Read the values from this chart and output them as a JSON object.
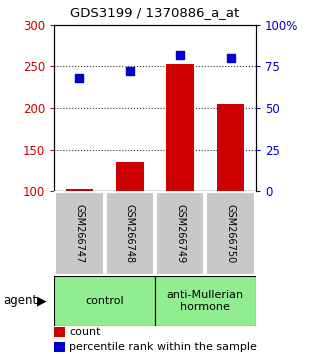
{
  "title": "GDS3199 / 1370886_a_at",
  "samples": [
    "GSM266747",
    "GSM266748",
    "GSM266749",
    "GSM266750"
  ],
  "count_values": [
    103,
    135,
    253,
    205
  ],
  "percentile_pct": [
    68,
    72,
    82,
    80
  ],
  "groups": [
    {
      "name": "control",
      "color": "#90EE90"
    },
    {
      "name": "anti-Mullerian\nhormone",
      "color": "#90EE90"
    }
  ],
  "bar_color": "#CC0000",
  "dot_color": "#0000CC",
  "left_ylim": [
    100,
    300
  ],
  "left_yticks": [
    100,
    150,
    200,
    250,
    300
  ],
  "right_ylim": [
    0,
    100
  ],
  "right_yticks": [
    0,
    25,
    50,
    75,
    100
  ],
  "right_yticklabels": [
    "0",
    "25",
    "50",
    "75",
    "100%"
  ],
  "left_tick_color": "#CC0000",
  "right_tick_color": "#0000CC",
  "bar_width": 0.55,
  "sample_box_color": "#C8C8C8",
  "legend_count_label": "count",
  "legend_pct_label": "percentile rank within the sample",
  "agent_label": "agent"
}
